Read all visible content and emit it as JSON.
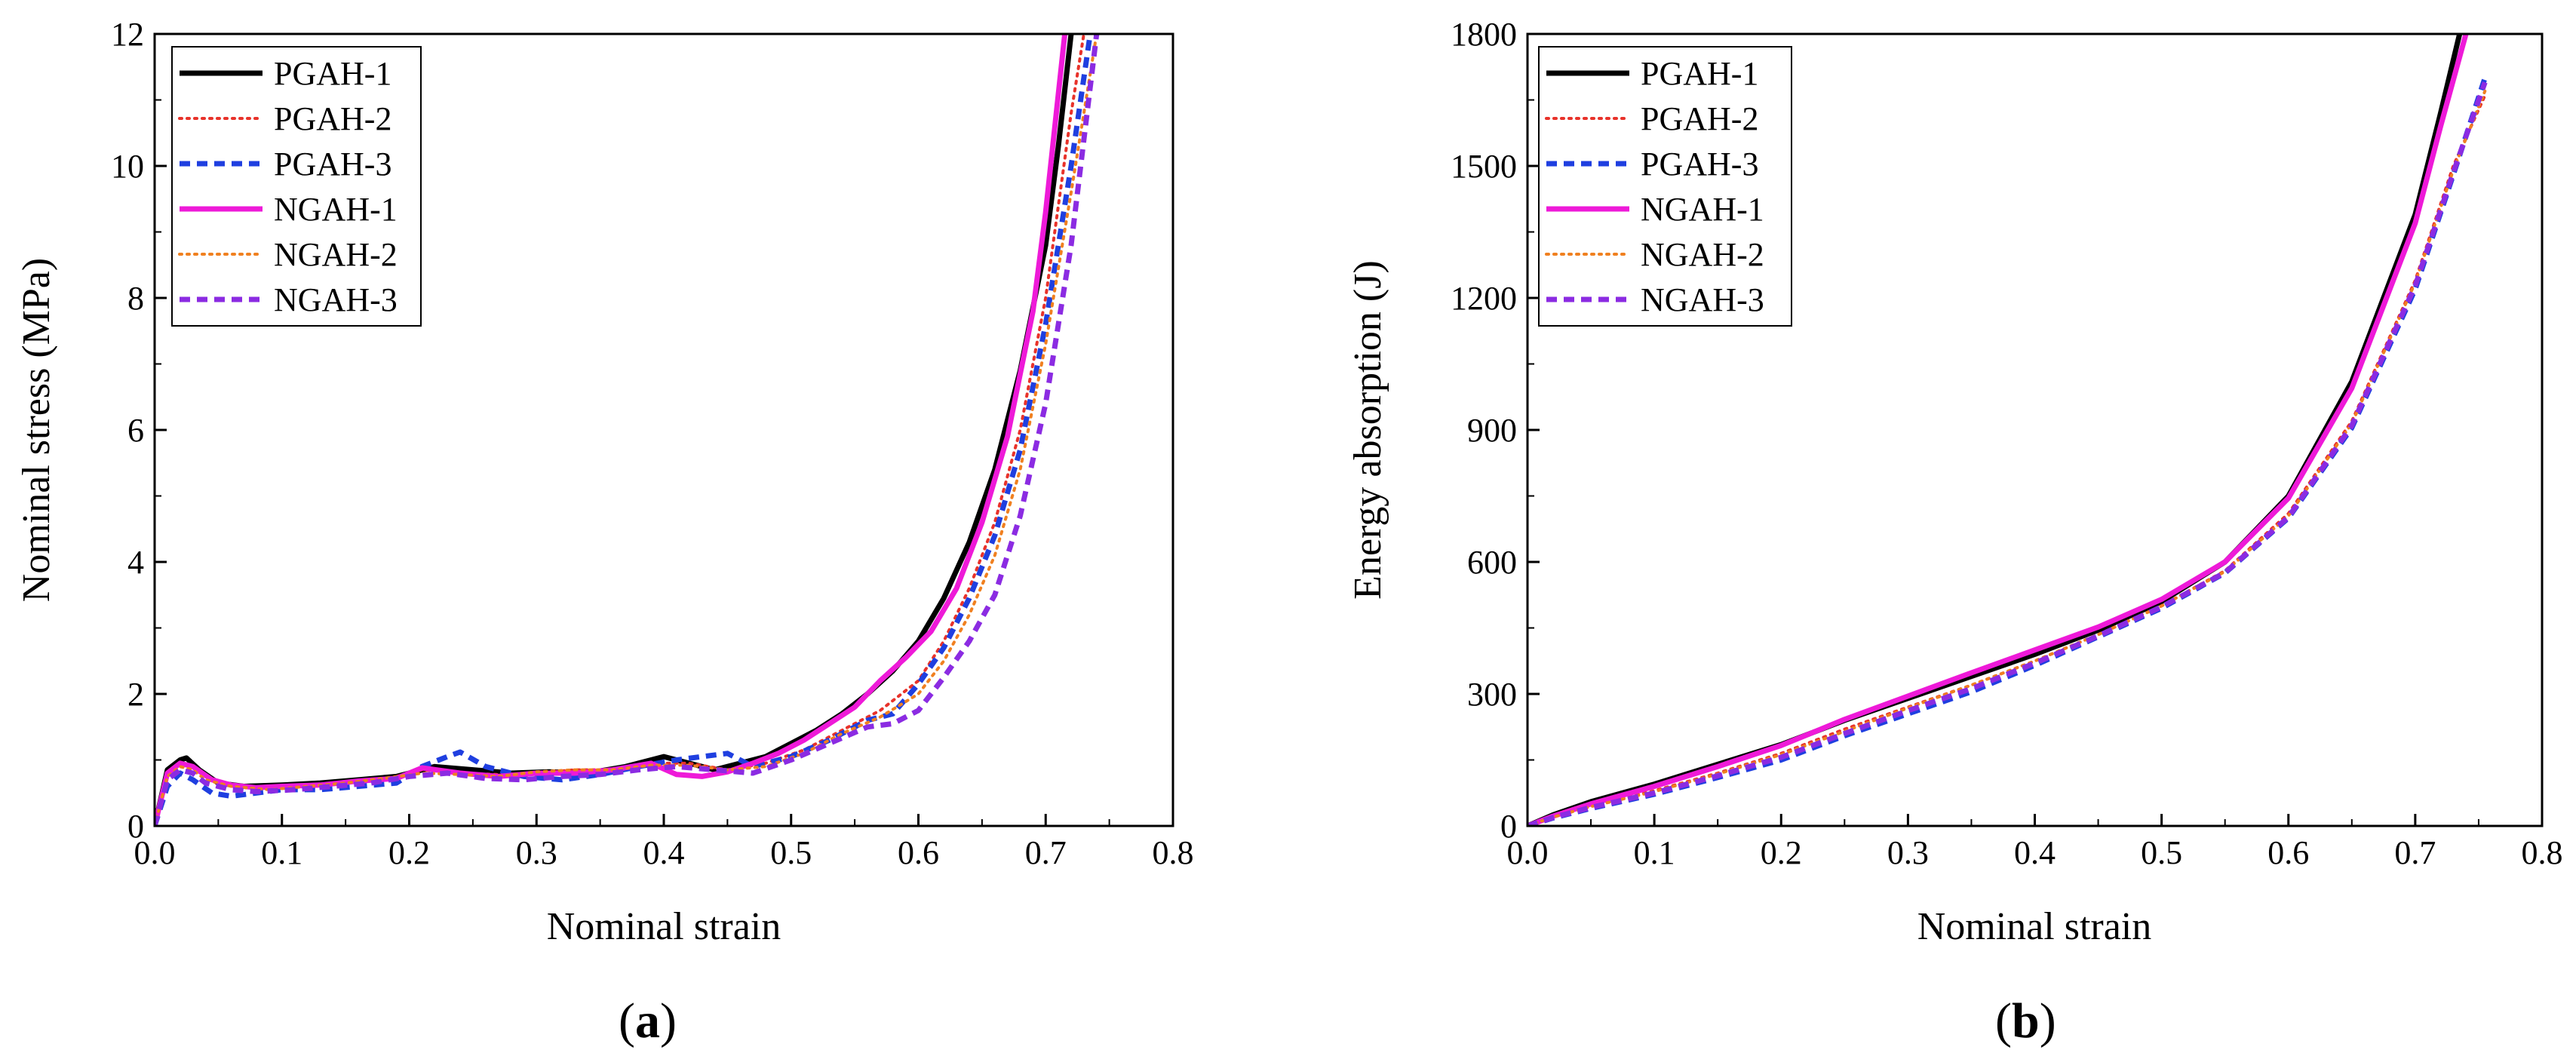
{
  "legend_style": {
    "PGAH-1": {
      "color": "#000000",
      "dash": "solid"
    },
    "PGAH-2": {
      "color": "#e8322a",
      "dash": "dot"
    },
    "PGAH-3": {
      "color": "#1f3fe0",
      "dash": "dash"
    },
    "NGAH-1": {
      "color": "#ee1ad8",
      "dash": "solid"
    },
    "NGAH-2": {
      "color": "#f08020",
      "dash": "dot"
    },
    "NGAH-3": {
      "color": "#8b2be2",
      "dash": "dash"
    }
  },
  "chart_data": [
    {
      "type": "line",
      "panel_label": "a",
      "xlabel": "Nominal strain",
      "ylabel": "Nominal stress (MPa)",
      "xlim": [
        0.0,
        0.8
      ],
      "ylim": [
        0,
        12
      ],
      "xticks": [
        0.0,
        0.1,
        0.2,
        0.3,
        0.4,
        0.5,
        0.6,
        0.7,
        0.8
      ],
      "xtick_labels": [
        "0.0",
        "0.1",
        "0.2",
        "0.3",
        "0.4",
        "0.5",
        "0.6",
        "0.7",
        "0.8"
      ],
      "yticks": [
        0,
        2,
        4,
        6,
        8,
        10,
        12
      ],
      "ytick_labels": [
        "0",
        "2",
        "4",
        "6",
        "8",
        "10",
        "12"
      ],
      "legend_position": "top-left",
      "series": [
        {
          "name": "PGAH-1",
          "x": [
            0,
            0.01,
            0.02,
            0.025,
            0.035,
            0.05,
            0.07,
            0.1,
            0.13,
            0.16,
            0.19,
            0.22,
            0.25,
            0.28,
            0.31,
            0.34,
            0.37,
            0.4,
            0.42,
            0.44,
            0.46,
            0.48,
            0.5,
            0.52,
            0.54,
            0.56,
            0.58,
            0.6,
            0.62,
            0.64,
            0.66,
            0.68,
            0.7,
            0.71,
            0.72
          ],
          "y": [
            0,
            0.85,
            1.0,
            1.03,
            0.85,
            0.65,
            0.6,
            0.62,
            0.65,
            0.7,
            0.75,
            0.9,
            0.85,
            0.8,
            0.82,
            0.8,
            0.9,
            1.05,
            0.95,
            0.85,
            0.95,
            1.05,
            1.25,
            1.45,
            1.7,
            2.0,
            2.35,
            2.8,
            3.45,
            4.3,
            5.4,
            6.9,
            8.8,
            10.3,
            12
          ]
        },
        {
          "name": "PGAH-2",
          "x": [
            0,
            0.01,
            0.02,
            0.03,
            0.04,
            0.06,
            0.09,
            0.12,
            0.15,
            0.18,
            0.21,
            0.24,
            0.27,
            0.3,
            0.33,
            0.36,
            0.39,
            0.42,
            0.45,
            0.48,
            0.51,
            0.54,
            0.57,
            0.6,
            0.62,
            0.64,
            0.66,
            0.68,
            0.7,
            0.72,
            0.73
          ],
          "y": [
            0,
            0.8,
            0.95,
            0.9,
            0.75,
            0.6,
            0.58,
            0.62,
            0.66,
            0.7,
            0.85,
            0.8,
            0.78,
            0.8,
            0.85,
            0.85,
            0.95,
            0.95,
            0.85,
            0.95,
            1.15,
            1.45,
            1.75,
            2.2,
            2.8,
            3.6,
            4.6,
            6.0,
            8.0,
            10.8,
            12
          ]
        },
        {
          "name": "PGAH-3",
          "x": [
            0,
            0.01,
            0.02,
            0.03,
            0.045,
            0.06,
            0.08,
            0.1,
            0.13,
            0.16,
            0.19,
            0.21,
            0.23,
            0.24,
            0.26,
            0.29,
            0.32,
            0.35,
            0.38,
            0.41,
            0.43,
            0.45,
            0.47,
            0.5,
            0.53,
            0.56,
            0.58,
            0.6,
            0.62,
            0.64,
            0.66,
            0.68,
            0.7,
            0.72,
            0.735
          ],
          "y": [
            0,
            0.6,
            0.8,
            0.7,
            0.5,
            0.45,
            0.5,
            0.55,
            0.55,
            0.6,
            0.65,
            0.9,
            1.05,
            1.12,
            0.9,
            0.75,
            0.7,
            0.78,
            0.9,
            1.0,
            1.05,
            1.1,
            0.9,
            1.05,
            1.3,
            1.6,
            1.7,
            2.15,
            2.7,
            3.45,
            4.4,
            5.7,
            7.6,
            10.0,
            12
          ]
        },
        {
          "name": "NGAH-1",
          "x": [
            0,
            0.01,
            0.02,
            0.03,
            0.045,
            0.06,
            0.08,
            0.1,
            0.13,
            0.16,
            0.19,
            0.21,
            0.24,
            0.27,
            0.3,
            0.33,
            0.36,
            0.39,
            0.41,
            0.43,
            0.45,
            0.47,
            0.49,
            0.51,
            0.53,
            0.55,
            0.57,
            0.59,
            0.61,
            0.63,
            0.65,
            0.67,
            0.69,
            0.7,
            0.715
          ],
          "y": [
            0,
            0.8,
            0.95,
            0.9,
            0.7,
            0.62,
            0.58,
            0.6,
            0.62,
            0.68,
            0.72,
            0.88,
            0.8,
            0.75,
            0.8,
            0.8,
            0.85,
            0.95,
            0.78,
            0.75,
            0.82,
            0.95,
            1.1,
            1.3,
            1.55,
            1.8,
            2.2,
            2.55,
            2.95,
            3.6,
            4.6,
            5.9,
            7.8,
            9.3,
            12
          ]
        },
        {
          "name": "NGAH-2",
          "x": [
            0,
            0.01,
            0.02,
            0.03,
            0.04,
            0.06,
            0.09,
            0.12,
            0.15,
            0.18,
            0.21,
            0.24,
            0.27,
            0.3,
            0.33,
            0.36,
            0.39,
            0.42,
            0.45,
            0.48,
            0.51,
            0.54,
            0.57,
            0.6,
            0.62,
            0.64,
            0.66,
            0.68,
            0.7,
            0.72,
            0.74
          ],
          "y": [
            0,
            0.75,
            0.9,
            0.85,
            0.7,
            0.6,
            0.55,
            0.6,
            0.65,
            0.72,
            0.8,
            0.78,
            0.75,
            0.82,
            0.85,
            0.85,
            0.92,
            0.92,
            0.85,
            0.9,
            1.1,
            1.4,
            1.65,
            2.0,
            2.5,
            3.2,
            4.1,
            5.4,
            7.3,
            9.6,
            12
          ]
        },
        {
          "name": "NGAH-3",
          "x": [
            0,
            0.01,
            0.02,
            0.03,
            0.04,
            0.06,
            0.08,
            0.11,
            0.14,
            0.17,
            0.2,
            0.23,
            0.26,
            0.29,
            0.32,
            0.35,
            0.38,
            0.41,
            0.44,
            0.47,
            0.5,
            0.53,
            0.56,
            0.58,
            0.6,
            0.62,
            0.64,
            0.66,
            0.68,
            0.7,
            0.72,
            0.74
          ],
          "y": [
            0,
            0.7,
            0.85,
            0.8,
            0.65,
            0.55,
            0.52,
            0.55,
            0.6,
            0.65,
            0.75,
            0.8,
            0.72,
            0.7,
            0.75,
            0.78,
            0.85,
            0.9,
            0.85,
            0.8,
            1.0,
            1.25,
            1.5,
            1.55,
            1.75,
            2.25,
            2.8,
            3.5,
            4.7,
            6.4,
            8.8,
            12
          ]
        }
      ]
    },
    {
      "type": "line",
      "panel_label": "b",
      "xlabel": "Nominal strain",
      "ylabel": "Energy absorption (J)",
      "xlim": [
        0.0,
        0.8
      ],
      "ylim": [
        0,
        1800
      ],
      "xticks": [
        0.0,
        0.1,
        0.2,
        0.3,
        0.4,
        0.5,
        0.6,
        0.7,
        0.8
      ],
      "xtick_labels": [
        "0.0",
        "0.1",
        "0.2",
        "0.3",
        "0.4",
        "0.5",
        "0.6",
        "0.7",
        "0.8"
      ],
      "yticks": [
        0,
        300,
        600,
        900,
        1200,
        1500,
        1800
      ],
      "ytick_labels": [
        "0",
        "300",
        "600",
        "900",
        "1200",
        "1500",
        "1800"
      ],
      "legend_position": "top-left",
      "series": [
        {
          "name": "PGAH-1",
          "x": [
            0,
            0.02,
            0.05,
            0.1,
            0.15,
            0.2,
            0.25,
            0.3,
            0.35,
            0.4,
            0.45,
            0.5,
            0.55,
            0.6,
            0.65,
            0.7,
            0.72,
            0.735
          ],
          "y": [
            0,
            25,
            55,
            95,
            140,
            185,
            240,
            290,
            340,
            390,
            445,
            510,
            600,
            750,
            1010,
            1390,
            1620,
            1800
          ]
        },
        {
          "name": "PGAH-2",
          "x": [
            0,
            0.02,
            0.05,
            0.1,
            0.15,
            0.2,
            0.25,
            0.3,
            0.35,
            0.4,
            0.45,
            0.5,
            0.55,
            0.6,
            0.65,
            0.7,
            0.73,
            0.755
          ],
          "y": [
            0,
            20,
            45,
            80,
            120,
            165,
            220,
            270,
            320,
            375,
            435,
            500,
            580,
            710,
            920,
            1240,
            1500,
            1660
          ]
        },
        {
          "name": "PGAH-3",
          "x": [
            0,
            0.02,
            0.05,
            0.1,
            0.15,
            0.2,
            0.25,
            0.3,
            0.35,
            0.4,
            0.45,
            0.5,
            0.55,
            0.6,
            0.65,
            0.7,
            0.73,
            0.755
          ],
          "y": [
            0,
            18,
            40,
            72,
            110,
            150,
            205,
            255,
            305,
            365,
            430,
            495,
            575,
            700,
            905,
            1220,
            1480,
            1700
          ]
        },
        {
          "name": "NGAH-1",
          "x": [
            0,
            0.02,
            0.05,
            0.1,
            0.15,
            0.2,
            0.25,
            0.3,
            0.35,
            0.4,
            0.45,
            0.5,
            0.55,
            0.6,
            0.65,
            0.7,
            0.72,
            0.74
          ],
          "y": [
            0,
            22,
            50,
            90,
            135,
            183,
            242,
            295,
            348,
            400,
            452,
            515,
            600,
            745,
            995,
            1370,
            1590,
            1800
          ]
        },
        {
          "name": "NGAH-2",
          "x": [
            0,
            0.02,
            0.05,
            0.1,
            0.15,
            0.2,
            0.25,
            0.3,
            0.35,
            0.4,
            0.45,
            0.5,
            0.55,
            0.6,
            0.65,
            0.7,
            0.73,
            0.755
          ],
          "y": [
            0,
            20,
            44,
            78,
            118,
            162,
            215,
            268,
            320,
            375,
            435,
            500,
            578,
            705,
            915,
            1235,
            1490,
            1670
          ]
        },
        {
          "name": "NGAH-3",
          "x": [
            0,
            0.02,
            0.05,
            0.1,
            0.15,
            0.2,
            0.25,
            0.3,
            0.35,
            0.4,
            0.45,
            0.5,
            0.55,
            0.6,
            0.65,
            0.7,
            0.73,
            0.755
          ],
          "y": [
            0,
            19,
            42,
            75,
            114,
            156,
            210,
            262,
            312,
            370,
            432,
            498,
            576,
            702,
            910,
            1228,
            1485,
            1690
          ]
        }
      ]
    }
  ]
}
